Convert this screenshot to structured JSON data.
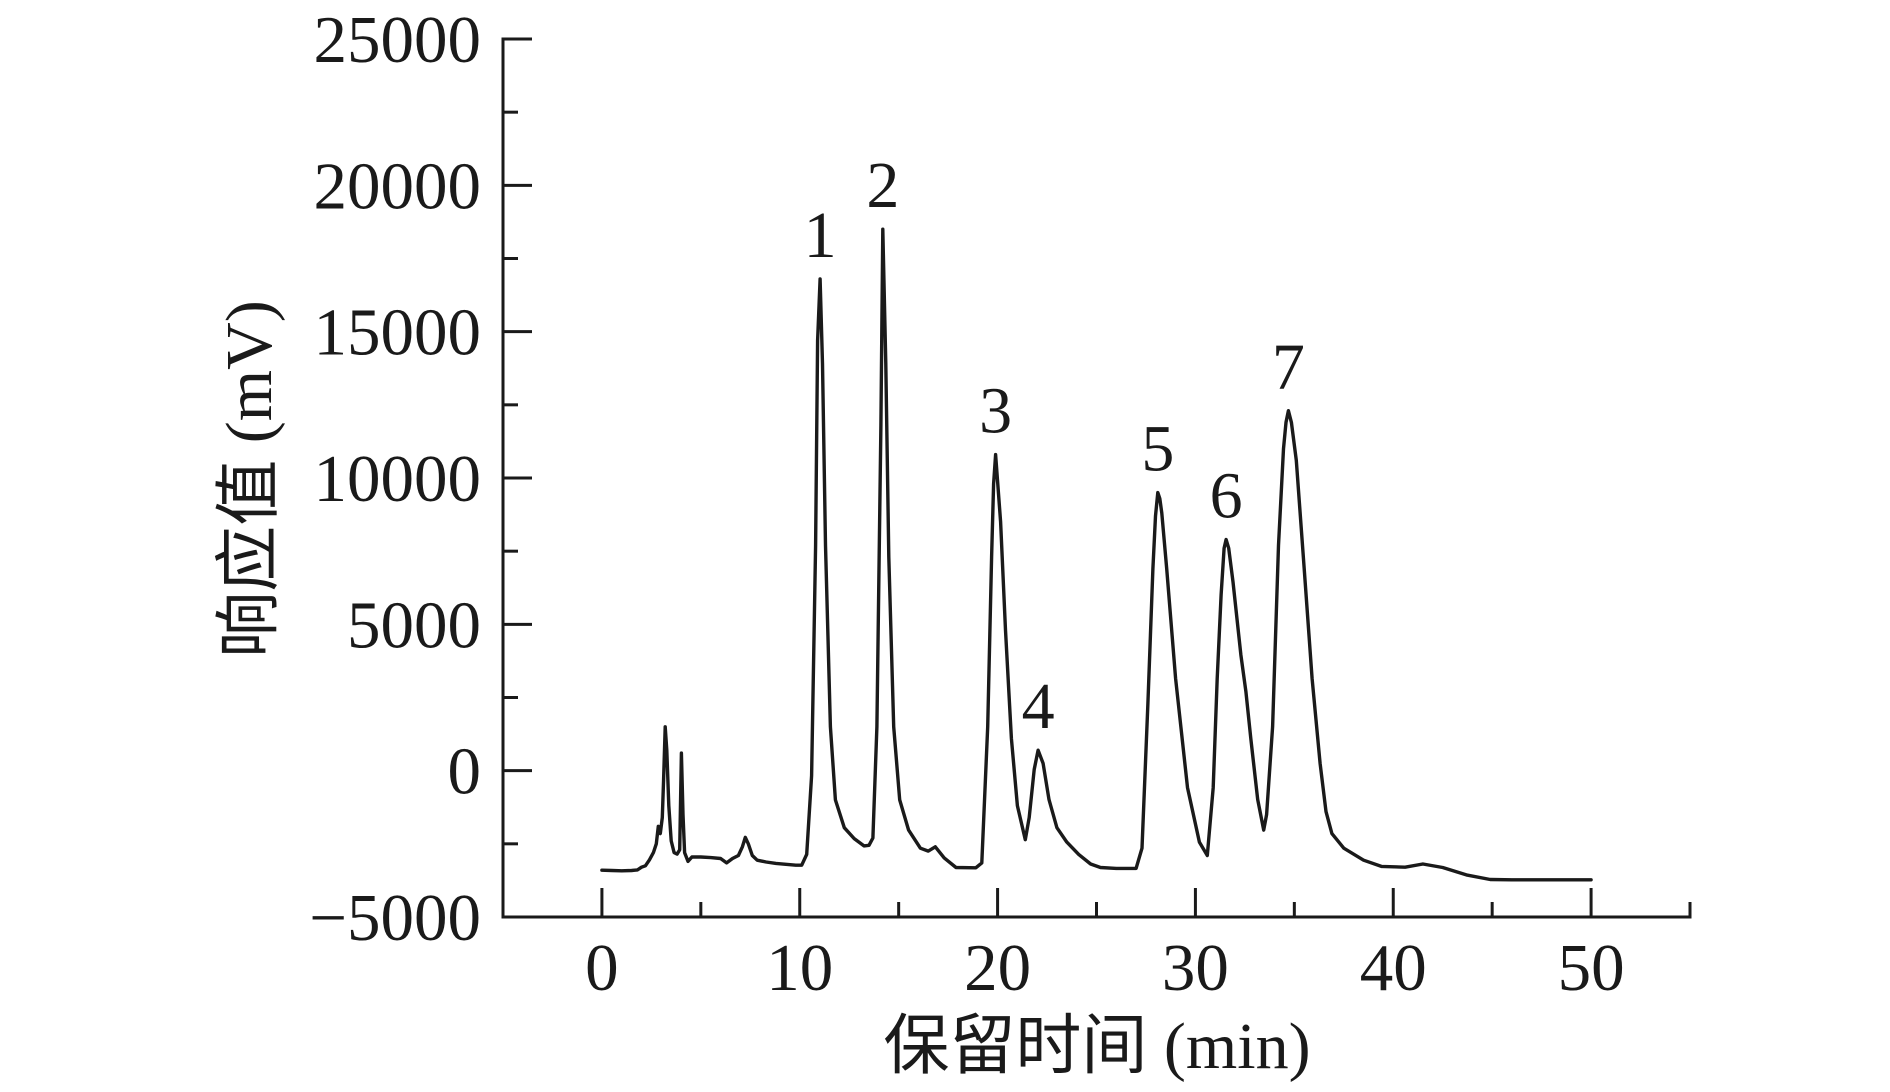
{
  "chart_data": {
    "type": "line",
    "xlabel": "保留时间 (min)",
    "ylabel": "响应值 (mV)",
    "xlim": [
      -5,
      55
    ],
    "ylim": [
      -5000,
      25000
    ],
    "xticks": [
      0,
      10,
      20,
      30,
      40,
      50
    ],
    "xtick_labels": [
      "0",
      "10",
      "20",
      "30",
      "40",
      "50"
    ],
    "xminor_ticks": [
      5,
      15,
      25,
      35,
      45,
      55
    ],
    "yticks": [
      -5000,
      0,
      5000,
      10000,
      15000,
      20000,
      25000
    ],
    "ytick_labels": [
      "−5000",
      "0",
      "5000",
      "10000",
      "15000",
      "20000",
      "25000"
    ],
    "yminor_ticks": [
      -2500,
      2500,
      7500,
      12500,
      17500,
      22500
    ],
    "grid": false,
    "line_color": "#1a1a1a",
    "series": [
      {
        "points": [
          [
            0,
            -3400
          ],
          [
            0.5,
            -3410
          ],
          [
            1.0,
            -3420
          ],
          [
            1.5,
            -3410
          ],
          [
            1.8,
            -3390
          ],
          [
            2.0,
            -3300
          ],
          [
            2.2,
            -3250
          ],
          [
            2.4,
            -3050
          ],
          [
            2.6,
            -2800
          ],
          [
            2.75,
            -2500
          ],
          [
            2.85,
            -1900
          ],
          [
            2.95,
            -2150
          ],
          [
            3.05,
            -1600
          ],
          [
            3.12,
            -300
          ],
          [
            3.2,
            1500
          ],
          [
            3.28,
            700
          ],
          [
            3.38,
            -1200
          ],
          [
            3.5,
            -2400
          ],
          [
            3.65,
            -2800
          ],
          [
            3.8,
            -2850
          ],
          [
            3.93,
            -2700
          ],
          [
            4.02,
            600
          ],
          [
            4.1,
            -1500
          ],
          [
            4.18,
            -2800
          ],
          [
            4.35,
            -3100
          ],
          [
            4.55,
            -2950
          ],
          [
            5.0,
            -2950
          ],
          [
            5.5,
            -2970
          ],
          [
            6.0,
            -3000
          ],
          [
            6.3,
            -3150
          ],
          [
            6.6,
            -3000
          ],
          [
            6.9,
            -2900
          ],
          [
            7.1,
            -2600
          ],
          [
            7.25,
            -2280
          ],
          [
            7.4,
            -2500
          ],
          [
            7.6,
            -2900
          ],
          [
            7.85,
            -3060
          ],
          [
            8.3,
            -3120
          ],
          [
            8.8,
            -3170
          ],
          [
            9.3,
            -3200
          ],
          [
            9.8,
            -3230
          ],
          [
            10.1,
            -3230
          ],
          [
            10.35,
            -2860
          ],
          [
            10.6,
            -170
          ],
          [
            10.8,
            7700
          ],
          [
            10.9,
            14700
          ],
          [
            11.03,
            16800
          ],
          [
            11.15,
            13900
          ],
          [
            11.3,
            7700
          ],
          [
            11.55,
            1500
          ],
          [
            11.8,
            -1000
          ],
          [
            12.25,
            -1950
          ],
          [
            12.75,
            -2320
          ],
          [
            13.25,
            -2570
          ],
          [
            13.5,
            -2550
          ],
          [
            13.7,
            -2300
          ],
          [
            13.9,
            1500
          ],
          [
            14.1,
            11800
          ],
          [
            14.2,
            18500
          ],
          [
            14.35,
            13900
          ],
          [
            14.5,
            7300
          ],
          [
            14.75,
            1500
          ],
          [
            15.05,
            -1000
          ],
          [
            15.5,
            -2030
          ],
          [
            16.1,
            -2650
          ],
          [
            16.5,
            -2750
          ],
          [
            16.85,
            -2600
          ],
          [
            17.3,
            -2980
          ],
          [
            17.9,
            -3310
          ],
          [
            18.9,
            -3320
          ],
          [
            19.2,
            -3150
          ],
          [
            19.5,
            1500
          ],
          [
            19.7,
            7300
          ],
          [
            19.8,
            9800
          ],
          [
            19.9,
            10800
          ],
          [
            20.15,
            8500
          ],
          [
            20.4,
            4800
          ],
          [
            20.7,
            1100
          ],
          [
            21.0,
            -1200
          ],
          [
            21.4,
            -2360
          ],
          [
            21.6,
            -1600
          ],
          [
            21.85,
            40
          ],
          [
            22.05,
            700
          ],
          [
            22.3,
            250
          ],
          [
            22.6,
            -990
          ],
          [
            23.0,
            -1950
          ],
          [
            23.5,
            -2440
          ],
          [
            24.1,
            -2860
          ],
          [
            24.7,
            -3190
          ],
          [
            25.2,
            -3310
          ],
          [
            26.0,
            -3340
          ],
          [
            27.0,
            -3340
          ],
          [
            27.3,
            -2650
          ],
          [
            27.6,
            2300
          ],
          [
            27.85,
            6900
          ],
          [
            27.98,
            8700
          ],
          [
            28.1,
            9500
          ],
          [
            28.2,
            9300
          ],
          [
            28.3,
            8800
          ],
          [
            28.55,
            6900
          ],
          [
            29.0,
            3150
          ],
          [
            29.6,
            -580
          ],
          [
            30.2,
            -2440
          ],
          [
            30.6,
            -2900
          ],
          [
            30.9,
            -580
          ],
          [
            31.1,
            3150
          ],
          [
            31.3,
            6000
          ],
          [
            31.45,
            7600
          ],
          [
            31.55,
            7900
          ],
          [
            31.68,
            7600
          ],
          [
            31.9,
            6450
          ],
          [
            32.3,
            3950
          ],
          [
            32.55,
            2700
          ],
          [
            32.8,
            1100
          ],
          [
            33.15,
            -990
          ],
          [
            33.45,
            -2030
          ],
          [
            33.6,
            -1500
          ],
          [
            33.9,
            1500
          ],
          [
            34.2,
            7700
          ],
          [
            34.45,
            11000
          ],
          [
            34.58,
            11900
          ],
          [
            34.7,
            12300
          ],
          [
            34.85,
            11900
          ],
          [
            35.1,
            10600
          ],
          [
            35.5,
            6900
          ],
          [
            35.9,
            3150
          ],
          [
            36.3,
            250
          ],
          [
            36.6,
            -1400
          ],
          [
            36.9,
            -2150
          ],
          [
            37.5,
            -2650
          ],
          [
            38.5,
            -3060
          ],
          [
            39.4,
            -3270
          ],
          [
            40.6,
            -3300
          ],
          [
            41.5,
            -3190
          ],
          [
            42.5,
            -3310
          ],
          [
            43.7,
            -3560
          ],
          [
            44.9,
            -3720
          ],
          [
            46.0,
            -3730
          ],
          [
            48.0,
            -3730
          ],
          [
            50.0,
            -3730
          ]
        ]
      }
    ],
    "peaks": [
      {
        "label": "1",
        "x": 11.03,
        "y": 16800
      },
      {
        "label": "2",
        "x": 14.2,
        "y": 18500
      },
      {
        "label": "3",
        "x": 19.9,
        "y": 10800
      },
      {
        "label": "4",
        "x": 22.05,
        "y": 700
      },
      {
        "label": "5",
        "x": 28.1,
        "y": 9500
      },
      {
        "label": "6",
        "x": 31.55,
        "y": 7900
      },
      {
        "label": "7",
        "x": 34.7,
        "y": 12300
      }
    ]
  }
}
